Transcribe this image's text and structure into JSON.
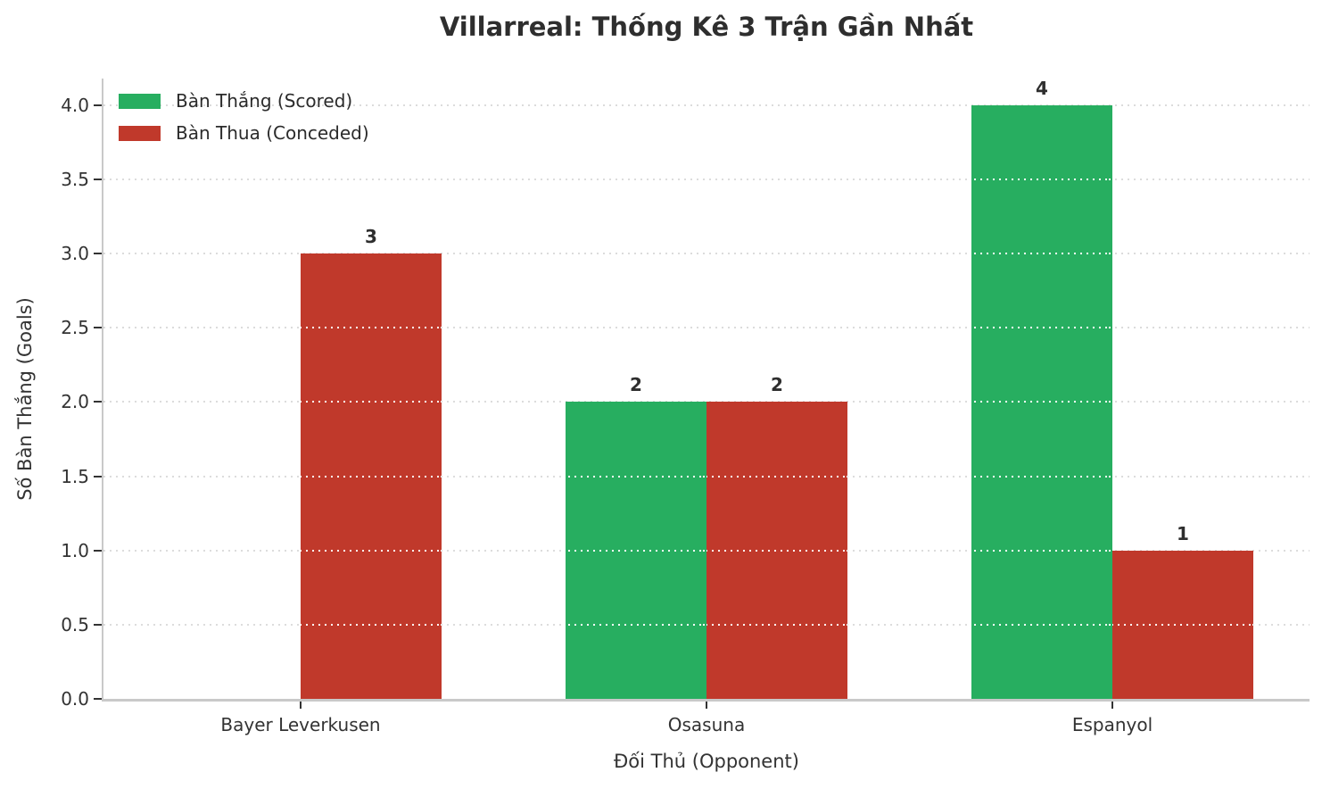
{
  "chart_data": {
    "type": "bar",
    "title": "Villarreal: Thống Kê 3 Trận Gần Nhất",
    "xlabel": "Đối Thủ (Opponent)",
    "ylabel": "Số Bàn Thắng (Goals)",
    "categories": [
      "Bayer Leverkusen",
      "Osasuna",
      "Espanyol"
    ],
    "series": [
      {
        "name": "Bàn Thắng (Scored)",
        "color": "#27ae60",
        "values": [
          0,
          2,
          4
        ]
      },
      {
        "name": "Bàn Thua (Conceded)",
        "color": "#c0392b",
        "values": [
          3,
          2,
          1
        ]
      }
    ],
    "ylim": [
      0,
      4.18
    ],
    "yticks": [
      0,
      0.5,
      1,
      1.5,
      2,
      2.5,
      3,
      3.5,
      4
    ],
    "ytick_labels": [
      "0.0",
      "0.5",
      "1.0",
      "1.5",
      "2.0",
      "2.5",
      "3.0",
      "3.5",
      "4.0"
    ],
    "grid": {
      "axis": "y",
      "linestyle": "dotted",
      "color": "#dcdcdc"
    },
    "legend": {
      "position": "upper left"
    },
    "value_labels_shown": [
      "3",
      "2",
      "2",
      "4",
      "1"
    ],
    "hide_zero_value_labels": true
  }
}
